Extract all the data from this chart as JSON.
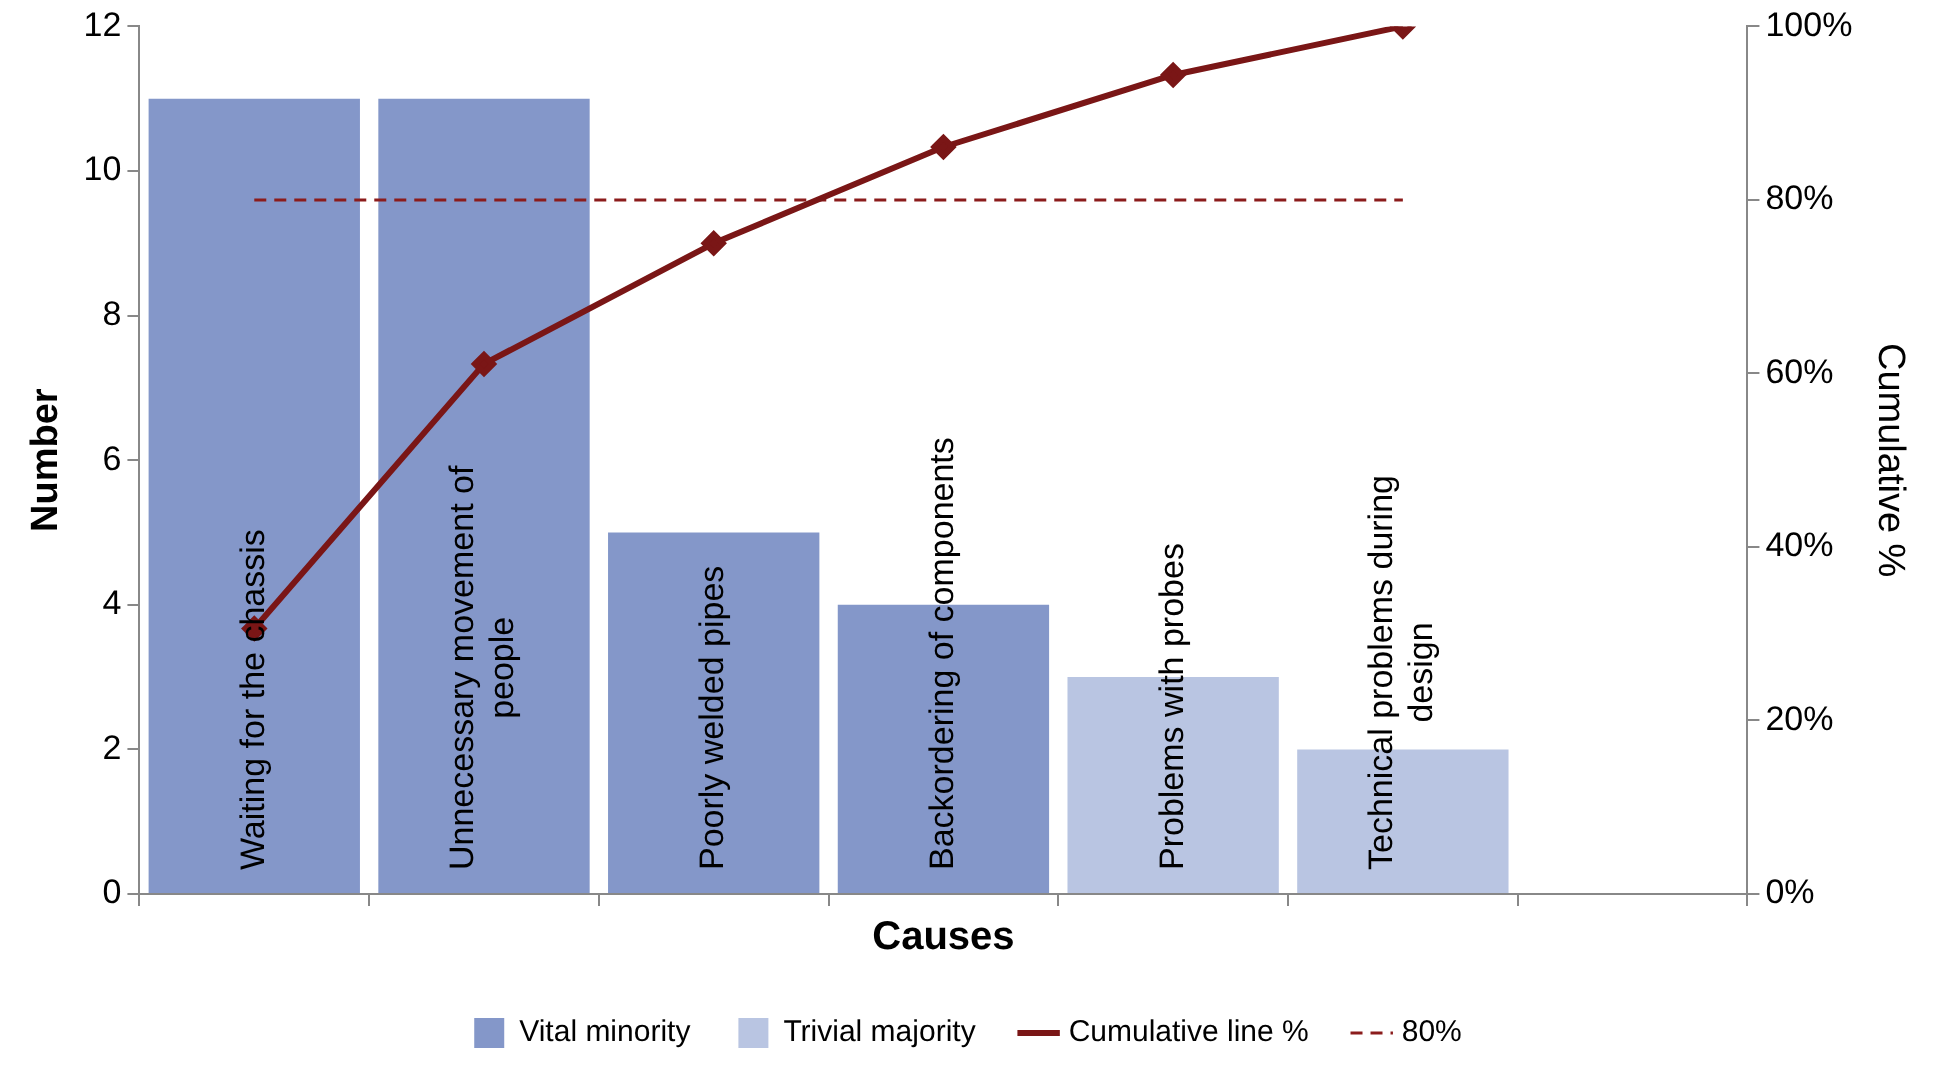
{
  "chart_data": {
    "type": "bar",
    "xlabel": "Causes",
    "ylabel": "Number",
    "y2label": "Cumulative %",
    "categories": [
      "Waiting for the chassis",
      "Unnecessary movement of people",
      "Poorly welded pipes",
      "Backordering of components",
      "Problems with probes",
      "Technical problems during design",
      null
    ],
    "series": [
      {
        "name": "Vital minority",
        "color": "#8497c9",
        "values": [
          11,
          11,
          5,
          4,
          null,
          null,
          null
        ]
      },
      {
        "name": "Trivial majority",
        "color": "#b9c5e2",
        "values": [
          null,
          null,
          null,
          null,
          3,
          2,
          null
        ]
      },
      {
        "name": "Cumulative line %",
        "type": "line",
        "axis": "y2",
        "color": "#7a1616",
        "marker": "diamond",
        "line_style": "solid",
        "values": [
          30.6,
          61.1,
          75,
          86.1,
          94.4,
          100,
          null
        ]
      },
      {
        "name": "80%",
        "type": "line",
        "axis": "y2",
        "color": "#8b1c1c",
        "marker": "none",
        "line_style": "dashed",
        "values": [
          80,
          80,
          80,
          80,
          80,
          80,
          null
        ]
      }
    ],
    "ylim": [
      0,
      12
    ],
    "yticks": [
      0,
      2,
      4,
      6,
      8,
      10,
      12
    ],
    "y2lim": [
      0,
      100
    ],
    "y2ticks": [
      {
        "value": 0,
        "label": "0%"
      },
      {
        "value": 20,
        "label": "20%"
      },
      {
        "value": 40,
        "label": "40%"
      },
      {
        "value": 60,
        "label": "60%"
      },
      {
        "value": 80,
        "label": "80%"
      },
      {
        "value": 100,
        "label": "100%"
      }
    ],
    "grid": false,
    "legend": "bottom"
  }
}
